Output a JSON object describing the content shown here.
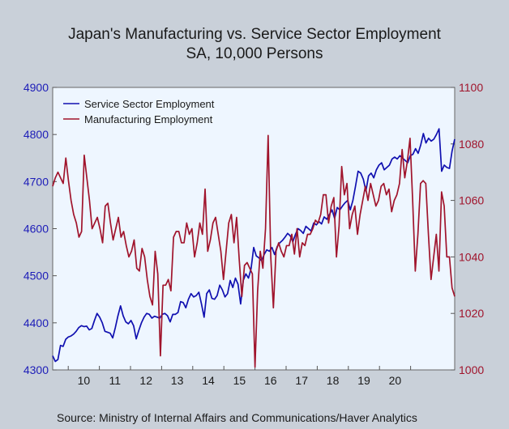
{
  "title": "Japan's Manufacturing vs. Service Sector Employment",
  "subtitle": "SA, 10,000 Persons",
  "source": "Source:  Ministry of Internal Affairs and Communications/Haver Analytics",
  "chart_data": {
    "type": "line",
    "x_ticks": [
      "10",
      "11",
      "12",
      "13",
      "14",
      "15",
      "16",
      "17",
      "18",
      "19",
      "20"
    ],
    "y_left": {
      "lim": [
        4300,
        4900
      ],
      "ticks": [
        "4300",
        "4400",
        "4500",
        "4600",
        "4700",
        "4800",
        "4900"
      ],
      "color": "#1d1db8"
    },
    "y_right": {
      "lim": [
        1000,
        1100
      ],
      "ticks": [
        "1000",
        "1020",
        "1040",
        "1060",
        "1080",
        "1100"
      ],
      "color": "#a0142c"
    },
    "grid": false,
    "legend_position": "top-left",
    "series": [
      {
        "name": "Service Sector Employment",
        "axis": "left",
        "color": "#1010b0",
        "values": [
          4330,
          4318,
          4322,
          4352,
          4350,
          4365,
          4370,
          4372,
          4376,
          4382,
          4390,
          4394,
          4392,
          4393,
          4385,
          4388,
          4405,
          4420,
          4412,
          4400,
          4382,
          4380,
          4378,
          4368,
          4390,
          4415,
          4436,
          4415,
          4402,
          4398,
          4405,
          4394,
          4366,
          4384,
          4400,
          4412,
          4420,
          4418,
          4410,
          4414,
          4412,
          4410,
          4418,
          4420,
          4415,
          4402,
          4418,
          4418,
          4422,
          4445,
          4443,
          4432,
          4450,
          4462,
          4455,
          4458,
          4465,
          4440,
          4412,
          4462,
          4470,
          4452,
          4450,
          4458,
          4480,
          4470,
          4455,
          4462,
          4490,
          4475,
          4495,
          4482,
          4440,
          4490,
          4504,
          4495,
          4515,
          4560,
          4542,
          4538,
          4532,
          4545,
          4555,
          4552,
          4560,
          4545,
          4562,
          4570,
          4575,
          4582,
          4590,
          4585,
          4572,
          4588,
          4600,
          4596,
          4590,
          4605,
          4600,
          4595,
          4612,
          4608,
          4615,
          4610,
          4625,
          4620,
          4630,
          4640,
          4622,
          4645,
          4640,
          4648,
          4655,
          4660,
          4640,
          4660,
          4690,
          4722,
          4718,
          4705,
          4680,
          4712,
          4718,
          4708,
          4725,
          4735,
          4740,
          4725,
          4730,
          4735,
          4748,
          4752,
          4748,
          4755,
          4750,
          4745,
          4740,
          4755,
          4758,
          4770,
          4760,
          4778,
          4802,
          4782,
          4792,
          4786,
          4790,
          4800,
          4812,
          4722,
          4735,
          4730,
          4728,
          4765,
          4790
        ]
      },
      {
        "name": "Manufacturing Employment",
        "axis": "right",
        "color": "#a0142c",
        "values": [
          1065,
          1068,
          1070,
          1068,
          1066,
          1075,
          1067,
          1060,
          1055,
          1052,
          1047,
          1049,
          1076,
          1068,
          1060,
          1050,
          1052,
          1054,
          1050,
          1045,
          1058,
          1059,
          1052,
          1046,
          1050,
          1054,
          1047,
          1049,
          1044,
          1040,
          1042,
          1046,
          1036,
          1035,
          1043,
          1040,
          1032,
          1026,
          1023,
          1042,
          1034,
          1005,
          1030,
          1030,
          1032,
          1028,
          1047,
          1049,
          1049,
          1045,
          1045,
          1052,
          1048,
          1050,
          1040,
          1045,
          1052,
          1048,
          1064,
          1042,
          1046,
          1052,
          1054,
          1048,
          1042,
          1032,
          1042,
          1052,
          1055,
          1045,
          1054,
          1039,
          1026,
          1037,
          1038,
          1036,
          1034,
          1001,
          1028,
          1042,
          1036,
          1050,
          1083,
          1040,
          1022,
          1042,
          1045,
          1042,
          1040,
          1044,
          1044,
          1048,
          1041,
          1050,
          1040,
          1045,
          1044,
          1048,
          1048,
          1050,
          1053,
          1052,
          1055,
          1062,
          1062,
          1052,
          1058,
          1061,
          1040,
          1051,
          1072,
          1062,
          1066,
          1050,
          1055,
          1058,
          1048,
          1055,
          1060,
          1065,
          1060,
          1066,
          1062,
          1058,
          1060,
          1065,
          1066,
          1062,
          1064,
          1056,
          1060,
          1062,
          1066,
          1078,
          1068,
          1074,
          1082,
          1060,
          1035,
          1048,
          1066,
          1067,
          1066,
          1048,
          1032,
          1040,
          1048,
          1035,
          1063,
          1058,
          1040,
          1040,
          1029,
          1026
        ]
      }
    ]
  }
}
